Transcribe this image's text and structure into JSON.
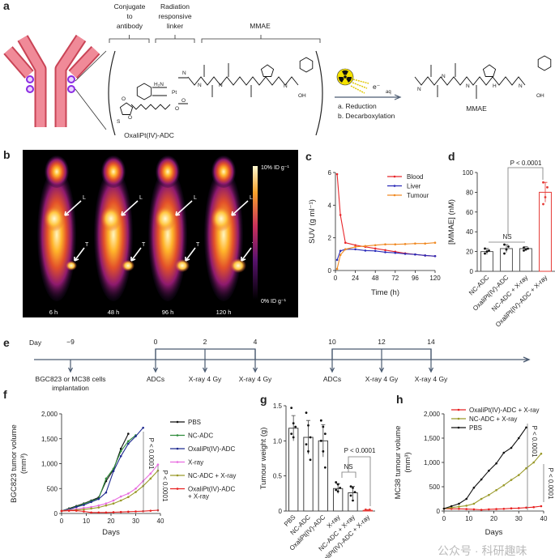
{
  "panel_labels": [
    "a",
    "b",
    "c",
    "d",
    "e",
    "f",
    "g",
    "h"
  ],
  "panel_a": {
    "header_conjugate": [
      "Conjugate",
      "to",
      "antibody"
    ],
    "header_linker": [
      "Radiation",
      "responsive",
      "linker"
    ],
    "header_payload": "MMAE",
    "adc_name": "OxaliPt(IV)-ADC",
    "adc_atoms": [
      "H₂N",
      "N",
      "Pt",
      "O",
      "O",
      "N",
      "N",
      "N",
      "OH",
      "S",
      "O",
      "O"
    ],
    "product_atoms": [
      "N",
      "N",
      "N",
      "N",
      "OH",
      "H"
    ],
    "electron": "e⁻",
    "electron_sub": "aq",
    "step_a": "a. Reduction",
    "step_b": "b. Decarboxylation",
    "product_name": "MMAE",
    "colors": {
      "antibody": "#f08a98",
      "antibody_outline": "#c94456",
      "conjugation_site": "#8b2be2",
      "radiation": "#f5e100"
    }
  },
  "panel_b": {
    "timepoints": [
      "6 h",
      "48 h",
      "96 h",
      "120 h"
    ],
    "scale_max": "10% ID g⁻¹",
    "scale_min": "0% ID g⁻¹",
    "liver_marker": "L",
    "tumour_marker": "T"
  },
  "panel_e": {
    "axis_label": "Day",
    "days": [
      "−9",
      "0",
      "2",
      "4",
      "10",
      "12",
      "14"
    ],
    "events": [
      "BGC823 or MC38 cells",
      "ADCs",
      "X-ray 4 Gy",
      "X-ray 4 Gy",
      "ADCs",
      "X-ray 4 Gy",
      "X-ray 4 Gy"
    ],
    "first_event_line2": "implantation"
  },
  "watermark": "公众号 · 科研趣味",
  "chart_data": [
    {
      "panel": "c",
      "type": "line",
      "xlabel": "Time (h)",
      "ylabel": "SUV (g ml⁻¹)",
      "xlim": [
        0,
        120
      ],
      "ylim": [
        0,
        6
      ],
      "xticks": [
        0,
        24,
        48,
        72,
        96,
        120
      ],
      "xtick_labels": [
        "0",
        "24",
        "48",
        "72",
        "96",
        "120"
      ],
      "yticks": [
        0,
        2,
        4,
        6
      ],
      "ytick_labels": [
        "0",
        "2",
        "4",
        "6"
      ],
      "legend": "top-right",
      "grid": false,
      "series": [
        {
          "name": "Blood",
          "color": "#e8262b",
          "x": [
            2,
            6,
            12,
            24,
            36,
            48,
            60,
            72,
            84,
            96,
            108,
            120
          ],
          "y": [
            5.9,
            3.4,
            1.7,
            1.55,
            1.45,
            1.35,
            1.25,
            1.15,
            1.05,
            0.98,
            0.92,
            0.88
          ]
        },
        {
          "name": "Liver",
          "color": "#2a2ab8",
          "x": [
            2,
            6,
            12,
            24,
            36,
            48,
            60,
            72,
            84,
            96,
            108,
            120
          ],
          "y": [
            0.65,
            1.2,
            1.3,
            1.3,
            1.22,
            1.2,
            1.12,
            1.08,
            1.02,
            0.98,
            0.92,
            0.88
          ]
        },
        {
          "name": "Tumour",
          "color": "#f08a24",
          "x": [
            2,
            6,
            12,
            24,
            36,
            48,
            60,
            72,
            84,
            96,
            108,
            120
          ],
          "y": [
            0.1,
            0.95,
            1.3,
            1.45,
            1.5,
            1.55,
            1.6,
            1.6,
            1.62,
            1.65,
            1.65,
            1.7
          ]
        }
      ]
    },
    {
      "panel": "d",
      "type": "bar",
      "ylabel": "[MMAE] (nM)",
      "ylim": [
        0,
        100
      ],
      "yticks": [
        0,
        20,
        40,
        60,
        80,
        100
      ],
      "ytick_labels": [
        "0",
        "20",
        "40",
        "60",
        "80",
        "100"
      ],
      "categories": [
        "NC-ADC",
        "OxaliPt(IV)-ADC",
        "NC-ADC + X-ray",
        "OxaliPt(IV)-ADC + X-ray"
      ],
      "values": [
        20,
        23,
        23,
        80
      ],
      "errors": [
        3,
        4,
        2,
        10
      ],
      "points": [
        [
          18,
          20,
          21,
          23
        ],
        [
          18,
          22,
          25,
          27
        ],
        [
          21,
          22,
          23,
          24
        ],
        [
          68,
          75,
          85,
          90
        ]
      ],
      "colors": [
        "#555555",
        "#555555",
        "#555555",
        "#e53935"
      ],
      "annotations": [
        {
          "text": "NS"
        },
        {
          "text": "P < 0.0001"
        }
      ]
    },
    {
      "panel": "f",
      "type": "line",
      "xlabel": "Days",
      "ylabel": "BGC823 tumor volume",
      "ylabel_unit": "(mm³)",
      "xlim": [
        0,
        40
      ],
      "ylim": [
        0,
        2000
      ],
      "xticks": [
        0,
        10,
        20,
        30,
        40
      ],
      "xtick_labels": [
        "0",
        "10",
        "20",
        "30",
        "40"
      ],
      "yticks": [
        0,
        500,
        1000,
        1500,
        2000
      ],
      "ytick_labels": [
        "0",
        "500",
        "1,000",
        "1,500",
        "2,000"
      ],
      "legend": "right",
      "legend_entries": [
        [
          "PBS"
        ],
        [
          "NC-ADC"
        ],
        [
          "OxaliPt(IV)-ADC"
        ],
        [
          "X-ray"
        ],
        [
          "NC-ADC + X-ray"
        ],
        [
          "OxaliPt(IV)-ADC",
          "+ X-ray"
        ]
      ],
      "series": [
        {
          "name": "PBS",
          "color": "#111111",
          "x": [
            0,
            3,
            6,
            9,
            12,
            15,
            18,
            21,
            24,
            27
          ],
          "y": [
            50,
            100,
            150,
            200,
            260,
            320,
            650,
            880,
            1300,
            1600
          ]
        },
        {
          "name": "NC-ADC",
          "color": "#2e8b3a",
          "x": [
            0,
            3,
            6,
            9,
            12,
            15,
            18,
            21,
            24,
            27,
            30
          ],
          "y": [
            50,
            90,
            140,
            190,
            250,
            300,
            700,
            900,
            1250,
            1450,
            1570
          ]
        },
        {
          "name": "OxaliPt(IV)-ADC",
          "color": "#1f2a8f",
          "x": [
            0,
            3,
            6,
            9,
            12,
            15,
            18,
            21,
            24,
            27,
            30,
            33
          ],
          "y": [
            50,
            80,
            130,
            170,
            230,
            290,
            420,
            850,
            1150,
            1400,
            1550,
            1720
          ]
        },
        {
          "name": "X-ray",
          "color": "#e86be0",
          "x": [
            0,
            3,
            6,
            9,
            12,
            15,
            18,
            21,
            24,
            27,
            30,
            33,
            36,
            39
          ],
          "y": [
            50,
            70,
            90,
            110,
            130,
            160,
            200,
            260,
            340,
            400,
            500,
            650,
            800,
            980
          ]
        },
        {
          "name": "NC-ADC + X-ray",
          "color": "#9a9a2a",
          "x": [
            0,
            3,
            6,
            9,
            12,
            15,
            18,
            21,
            24,
            27,
            30,
            33,
            36,
            39
          ],
          "y": [
            50,
            60,
            70,
            80,
            100,
            120,
            160,
            200,
            260,
            330,
            430,
            550,
            700,
            860
          ]
        },
        {
          "name": "OxaliPt(IV)-ADC + X-ray",
          "color": "#e82020",
          "x": [
            0,
            3,
            6,
            9,
            12,
            15,
            18,
            21,
            24,
            27,
            30,
            33,
            36,
            39
          ],
          "y": [
            50,
            55,
            55,
            40,
            20,
            20,
            20,
            25,
            30,
            35,
            40,
            45,
            55,
            65
          ]
        }
      ],
      "annotations": [
        {
          "text": "P < 0.0001"
        },
        {
          "text": "P < 0.0001"
        }
      ]
    },
    {
      "panel": "g",
      "type": "bar",
      "ylabel": "Tumour weight (g)",
      "ylim": [
        0,
        1.5
      ],
      "yticks": [
        0,
        0.5,
        1.0,
        1.5
      ],
      "ytick_labels": [
        "0",
        "0.5",
        "1.0",
        "1.5"
      ],
      "categories": [
        "PBS",
        "NC-ADC",
        "OxaliPt(IV)-ADC",
        "X-ray",
        "NC-ADC + X-ray",
        "OxaliPt(IV)-ADC + X-ray"
      ],
      "values": [
        1.18,
        1.05,
        1.0,
        0.32,
        0.26,
        0.01
      ],
      "errors": [
        0.18,
        0.24,
        0.23,
        0.07,
        0.09,
        0.01
      ],
      "points": [
        [
          1.47,
          1.25,
          1.2,
          1.1,
          1.05
        ],
        [
          1.4,
          1.22,
          1.05,
          0.95,
          0.85,
          0.73
        ],
        [
          1.29,
          1.2,
          1.1,
          1.0,
          0.85,
          0.62
        ],
        [
          0.41,
          0.38,
          0.33,
          0.3,
          0.28
        ],
        [
          0.35,
          0.33,
          0.27,
          0.22,
          0.15
        ],
        [
          0.02,
          0.01,
          0.02,
          0.01
        ]
      ],
      "colors": [
        "#444444",
        "#444444",
        "#444444",
        "#444444",
        "#444444",
        "#e53935"
      ],
      "annotations": [
        {
          "text": "NS"
        },
        {
          "text": "P < 0.0001"
        }
      ]
    },
    {
      "panel": "h",
      "type": "line",
      "xlabel": "Days",
      "ylabel": "MC38 tumour volume",
      "ylabel_unit": "(mm³)",
      "xlim": [
        0,
        40
      ],
      "ylim": [
        0,
        2000
      ],
      "xticks": [
        0,
        10,
        20,
        30,
        40
      ],
      "xtick_labels": [
        "0",
        "10",
        "20",
        "30",
        "40"
      ],
      "yticks": [
        0,
        500,
        1000,
        1500,
        2000
      ],
      "ytick_labels": [
        "0",
        "500",
        "1,000",
        "1,500",
        "2,000"
      ],
      "legend": "top-left",
      "legend_entries": [
        [
          "OxaliPt(IV)-ADC + X-ray"
        ],
        [
          "NC-ADC + X-ray"
        ],
        [
          "PBS"
        ]
      ],
      "series": [
        {
          "name": "OxaliPt(IV)-ADC + X-ray",
          "color": "#e82020",
          "x": [
            0,
            3,
            6,
            9,
            12,
            15,
            18,
            21,
            24,
            27,
            30,
            33,
            36,
            39
          ],
          "y": [
            50,
            45,
            45,
            40,
            35,
            25,
            35,
            40,
            45,
            55,
            60,
            70,
            80,
            100
          ]
        },
        {
          "name": "NC-ADC + X-ray",
          "color": "#9a9a2a",
          "x": [
            0,
            3,
            6,
            9,
            12,
            15,
            18,
            21,
            24,
            27,
            30,
            33,
            36,
            39
          ],
          "y": [
            50,
            70,
            90,
            110,
            150,
            250,
            330,
            430,
            530,
            640,
            740,
            880,
            1000,
            1180
          ]
        },
        {
          "name": "PBS",
          "color": "#111111",
          "x": [
            0,
            3,
            6,
            9,
            12,
            15,
            18,
            21,
            24,
            27,
            30,
            33
          ],
          "y": [
            50,
            100,
            150,
            250,
            480,
            650,
            830,
            980,
            1200,
            1300,
            1500,
            1720
          ]
        }
      ],
      "annotations": [
        {
          "text": "P < 0.0001"
        },
        {
          "text": "P < 0.0001"
        }
      ]
    }
  ]
}
